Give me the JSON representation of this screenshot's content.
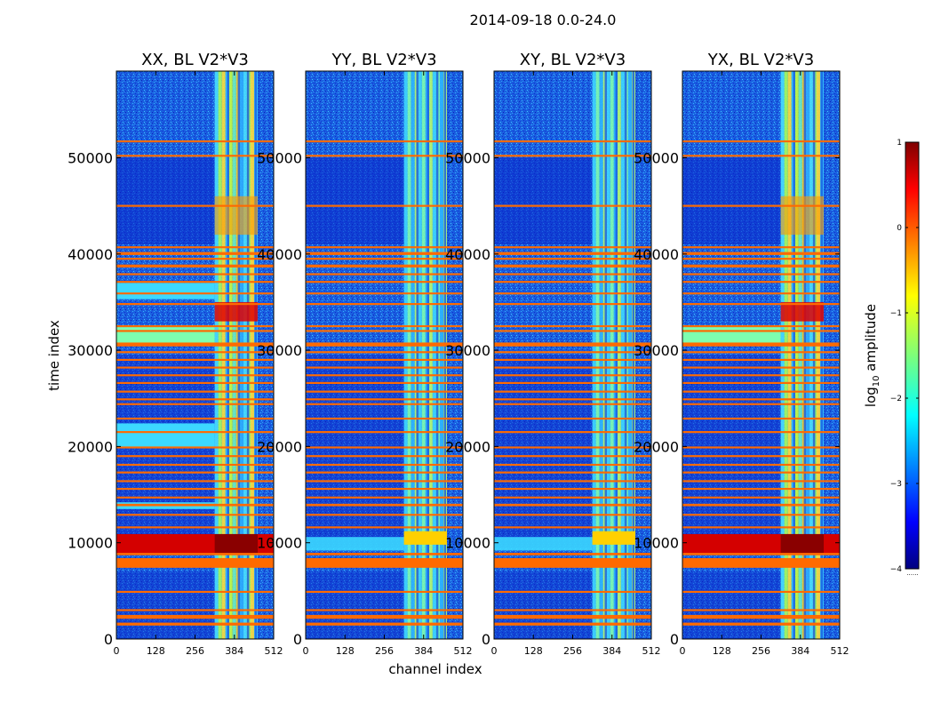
{
  "chart_data": {
    "type": "heatmap",
    "title": "2014-09-18 0.0-24.0",
    "xlabel": "channel index",
    "ylabel": "time index",
    "xlim": [
      0,
      512
    ],
    "ylim": [
      0,
      59000
    ],
    "x_ticks": [
      "0",
      "128",
      "256",
      "384",
      "512"
    ],
    "x_tick_values": [
      0,
      128,
      256,
      384,
      512
    ],
    "y_ticks": [
      "0",
      "10000",
      "20000",
      "30000",
      "40000",
      "50000"
    ],
    "y_tick_values": [
      0,
      10000,
      20000,
      30000,
      40000,
      50000
    ],
    "panels": [
      {
        "title": "XX, BL V2*V3",
        "pol": "XX"
      },
      {
        "title": "YY, BL V2*V3",
        "pol": "YY"
      },
      {
        "title": "XY, BL V2*V3",
        "pol": "XY"
      },
      {
        "title": "YX, BL V2*V3",
        "pol": "YX"
      }
    ],
    "colorbar": {
      "label_prefix": "log",
      "label_sub": "10",
      "label_suffix": " amplitude",
      "range": [
        -4,
        1
      ],
      "ticks": [
        "1",
        "0",
        "−1",
        "−2",
        "−3",
        "−4"
      ],
      "tick_values": [
        1,
        0,
        -1,
        -2,
        -3,
        -4
      ],
      "colormap": "jet",
      "under_marker": "......"
    },
    "flagged_bands_time": [
      [
        1400,
        1700
      ],
      [
        2100,
        2500
      ],
      [
        2900,
        3100
      ],
      [
        4800,
        5000
      ],
      [
        7400,
        8400
      ],
      [
        8700,
        8950
      ],
      [
        11500,
        11700
      ],
      [
        12800,
        13000
      ],
      [
        13800,
        14050
      ],
      [
        14600,
        14800
      ],
      [
        15500,
        15700
      ],
      [
        16300,
        16500
      ],
      [
        17200,
        17400
      ],
      [
        18000,
        18200
      ],
      [
        18900,
        19100
      ],
      [
        19800,
        20000
      ],
      [
        21400,
        21600
      ],
      [
        22800,
        23000
      ],
      [
        24300,
        24500
      ],
      [
        24800,
        25000
      ],
      [
        25600,
        25800
      ],
      [
        26500,
        26700
      ],
      [
        27300,
        27500
      ],
      [
        28100,
        28300
      ],
      [
        28900,
        29100
      ],
      [
        29700,
        29900
      ],
      [
        30400,
        30800
      ],
      [
        31900,
        32100
      ],
      [
        32400,
        32600
      ],
      [
        34700,
        34900
      ],
      [
        35800,
        36000
      ],
      [
        37000,
        37200
      ],
      [
        37800,
        38000
      ],
      [
        38600,
        38900
      ],
      [
        39400,
        39600
      ],
      [
        39900,
        40200
      ],
      [
        40600,
        40800
      ],
      [
        44900,
        45100
      ],
      [
        50100,
        50300
      ],
      [
        51600,
        51800
      ]
    ],
    "bright_channel_range": [
      320,
      460
    ],
    "colors": {
      "flag": "#ff6a00",
      "background_low": "#0a24c8",
      "noise_mid": "#1e78e6"
    }
  }
}
